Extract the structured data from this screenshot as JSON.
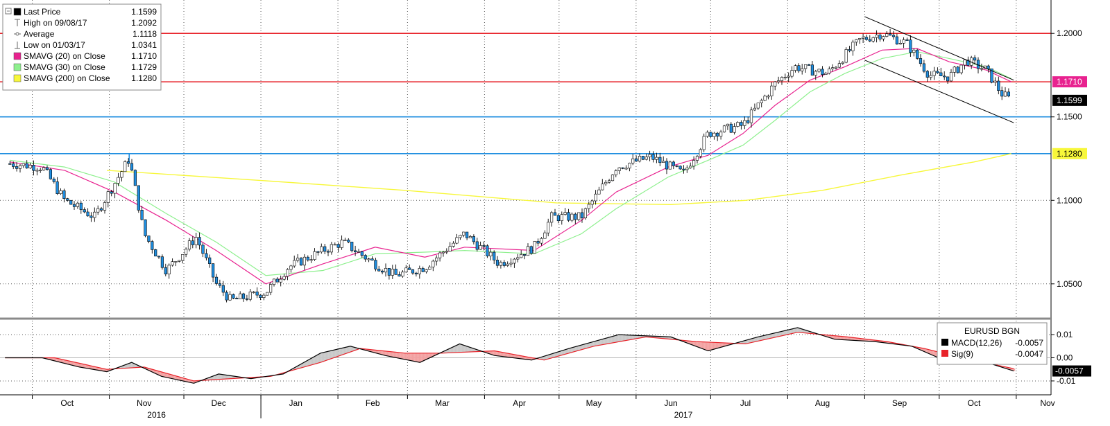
{
  "chart_data": [
    {
      "type": "candlestick",
      "ylim": [
        1.03,
        1.22
      ],
      "y_ticks": [
        "1.2000",
        "1.1500",
        "1.1000",
        "1.0500"
      ],
      "y_tick_values": [
        1.2,
        1.15,
        1.1,
        1.05
      ],
      "x_axis": {
        "months": [
          "Oct",
          "Nov",
          "Dec",
          "Jan",
          "Feb",
          "Mar",
          "Apr",
          "May",
          "Jun",
          "Jul",
          "Aug",
          "Sep",
          "Oct",
          "Nov"
        ],
        "years": [
          "2016",
          "2017"
        ]
      },
      "legend": [
        {
          "label": "Last Price",
          "value": "1.1599",
          "marker": "square",
          "color": "#000000"
        },
        {
          "label": "High on 09/08/17",
          "value": "1.2092",
          "marker": "high",
          "color": "#666666"
        },
        {
          "label": "Average",
          "value": "1.1118",
          "marker": "avg",
          "color": "#666666"
        },
        {
          "label": "Low on 01/03/17",
          "value": "1.0341",
          "marker": "low",
          "color": "#666666"
        },
        {
          "label": "SMAVG (20) on Close",
          "value": "1.1710",
          "marker": "square",
          "color": "#e8228f"
        },
        {
          "label": "SMAVG (30) on Close",
          "value": "1.1729",
          "marker": "square",
          "color": "#8ef08e"
        },
        {
          "label": "SMAVG (200) on Close",
          "value": "1.1280",
          "marker": "square",
          "color": "#f7f73a"
        }
      ],
      "horizontal_lines": [
        {
          "value": 1.2,
          "color": "#e8232a"
        },
        {
          "value": 1.171,
          "color": "#e8232a"
        },
        {
          "value": 1.15,
          "color": "#1f8ee0"
        },
        {
          "value": 1.128,
          "color": "#1f8ee0"
        }
      ],
      "badges": [
        {
          "text": "1.1710",
          "value": 1.171,
          "bg": "#e8228f",
          "fg": "#ffffff"
        },
        {
          "text": "1.1599",
          "value": 1.1599,
          "bg": "#000000",
          "fg": "#ffffff"
        },
        {
          "text": "1.1280",
          "value": 1.128,
          "bg": "#f7f73a",
          "fg": "#000000"
        }
      ],
      "colors": {
        "up": "#ffffff",
        "down": "#1f8ee0",
        "sma20": "#e8228f",
        "sma30": "#8ef08e",
        "sma200": "#f7f73a",
        "channel": "#000000"
      },
      "close_monthly": [
        {
          "x": "2016-09-22",
          "y": 1.122
        },
        {
          "x": "2016-10-05",
          "y": 1.12
        },
        {
          "x": "2016-10-14",
          "y": 1.1
        },
        {
          "x": "2016-10-26",
          "y": 1.09
        },
        {
          "x": "2016-11-03",
          "y": 1.11
        },
        {
          "x": "2016-11-09",
          "y": 1.125
        },
        {
          "x": "2016-11-15",
          "y": 1.08
        },
        {
          "x": "2016-11-24",
          "y": 1.058
        },
        {
          "x": "2016-12-06",
          "y": 1.078
        },
        {
          "x": "2016-12-14",
          "y": 1.05
        },
        {
          "x": "2016-12-20",
          "y": 1.04
        },
        {
          "x": "2017-01-03",
          "y": 1.045
        },
        {
          "x": "2017-01-12",
          "y": 1.06
        },
        {
          "x": "2017-01-26",
          "y": 1.07
        },
        {
          "x": "2017-02-03",
          "y": 1.075
        },
        {
          "x": "2017-02-16",
          "y": 1.062
        },
        {
          "x": "2017-02-24",
          "y": 1.055
        },
        {
          "x": "2017-03-08",
          "y": 1.06
        },
        {
          "x": "2017-03-24",
          "y": 1.08
        },
        {
          "x": "2017-04-07",
          "y": 1.062
        },
        {
          "x": "2017-04-21",
          "y": 1.072
        },
        {
          "x": "2017-04-28",
          "y": 1.09
        },
        {
          "x": "2017-05-10",
          "y": 1.09
        },
        {
          "x": "2017-05-24",
          "y": 1.12
        },
        {
          "x": "2017-06-07",
          "y": 1.126
        },
        {
          "x": "2017-06-20",
          "y": 1.116
        },
        {
          "x": "2017-06-30",
          "y": 1.14
        },
        {
          "x": "2017-07-14",
          "y": 1.145
        },
        {
          "x": "2017-07-27",
          "y": 1.17
        },
        {
          "x": "2017-08-04",
          "y": 1.18
        },
        {
          "x": "2017-08-17",
          "y": 1.176
        },
        {
          "x": "2017-08-30",
          "y": 1.196
        },
        {
          "x": "2017-09-08",
          "y": 1.2
        },
        {
          "x": "2017-09-18",
          "y": 1.194
        },
        {
          "x": "2017-09-27",
          "y": 1.175
        },
        {
          "x": "2017-10-05",
          "y": 1.174
        },
        {
          "x": "2017-10-12",
          "y": 1.184
        },
        {
          "x": "2017-10-20",
          "y": 1.178
        },
        {
          "x": "2017-10-26",
          "y": 1.164
        },
        {
          "x": "2017-10-30",
          "y": 1.1599
        }
      ],
      "sma20": [
        {
          "x": "2016-09-22",
          "y": 1.123
        },
        {
          "x": "2016-10-14",
          "y": 1.118
        },
        {
          "x": "2016-11-03",
          "y": 1.105
        },
        {
          "x": "2016-11-24",
          "y": 1.088
        },
        {
          "x": "2016-12-14",
          "y": 1.07
        },
        {
          "x": "2017-01-03",
          "y": 1.05
        },
        {
          "x": "2017-01-26",
          "y": 1.062
        },
        {
          "x": "2017-02-16",
          "y": 1.072
        },
        {
          "x": "2017-03-08",
          "y": 1.066
        },
        {
          "x": "2017-03-24",
          "y": 1.072
        },
        {
          "x": "2017-04-21",
          "y": 1.07
        },
        {
          "x": "2017-05-10",
          "y": 1.088
        },
        {
          "x": "2017-05-24",
          "y": 1.105
        },
        {
          "x": "2017-06-14",
          "y": 1.12
        },
        {
          "x": "2017-06-30",
          "y": 1.127
        },
        {
          "x": "2017-07-14",
          "y": 1.14
        },
        {
          "x": "2017-07-27",
          "y": 1.157
        },
        {
          "x": "2017-08-10",
          "y": 1.172
        },
        {
          "x": "2017-08-24",
          "y": 1.18
        },
        {
          "x": "2017-09-08",
          "y": 1.19
        },
        {
          "x": "2017-09-22",
          "y": 1.191
        },
        {
          "x": "2017-10-05",
          "y": 1.183
        },
        {
          "x": "2017-10-20",
          "y": 1.178
        },
        {
          "x": "2017-10-30",
          "y": 1.171
        }
      ],
      "sma30": [
        {
          "x": "2016-09-22",
          "y": 1.124
        },
        {
          "x": "2016-10-14",
          "y": 1.12
        },
        {
          "x": "2016-11-03",
          "y": 1.111
        },
        {
          "x": "2016-11-24",
          "y": 1.092
        },
        {
          "x": "2016-12-14",
          "y": 1.075
        },
        {
          "x": "2017-01-03",
          "y": 1.055
        },
        {
          "x": "2017-01-26",
          "y": 1.058
        },
        {
          "x": "2017-02-16",
          "y": 1.068
        },
        {
          "x": "2017-03-08",
          "y": 1.069
        },
        {
          "x": "2017-03-24",
          "y": 1.07
        },
        {
          "x": "2017-04-21",
          "y": 1.068
        },
        {
          "x": "2017-05-10",
          "y": 1.08
        },
        {
          "x": "2017-05-24",
          "y": 1.095
        },
        {
          "x": "2017-06-14",
          "y": 1.114
        },
        {
          "x": "2017-06-30",
          "y": 1.124
        },
        {
          "x": "2017-07-14",
          "y": 1.133
        },
        {
          "x": "2017-07-27",
          "y": 1.148
        },
        {
          "x": "2017-08-10",
          "y": 1.165
        },
        {
          "x": "2017-08-24",
          "y": 1.176
        },
        {
          "x": "2017-09-08",
          "y": 1.185
        },
        {
          "x": "2017-09-22",
          "y": 1.189
        },
        {
          "x": "2017-10-05",
          "y": 1.185
        },
        {
          "x": "2017-10-20",
          "y": 1.18
        },
        {
          "x": "2017-10-30",
          "y": 1.1729
        }
      ],
      "sma200": [
        {
          "x": "2016-10-31",
          "y": 1.118
        },
        {
          "x": "2016-12-31",
          "y": 1.112
        },
        {
          "x": "2017-02-28",
          "y": 1.106
        },
        {
          "x": "2017-04-30",
          "y": 1.0985
        },
        {
          "x": "2017-06-15",
          "y": 1.0975
        },
        {
          "x": "2017-07-15",
          "y": 1.1
        },
        {
          "x": "2017-08-15",
          "y": 1.106
        },
        {
          "x": "2017-09-15",
          "y": 1.115
        },
        {
          "x": "2017-10-15",
          "y": 1.123
        },
        {
          "x": "2017-10-30",
          "y": 1.128
        }
      ],
      "channel_upper": [
        {
          "x": "2017-09-01",
          "y": 1.21
        },
        {
          "x": "2017-10-31",
          "y": 1.172
        }
      ],
      "channel_lower": [
        {
          "x": "2017-09-01",
          "y": 1.184
        },
        {
          "x": "2017-10-31",
          "y": 1.1465
        }
      ]
    },
    {
      "type": "line",
      "title": "EURUSD BGN",
      "ylim": [
        -0.016,
        0.016
      ],
      "y_ticks": [
        "0.01",
        "0.00",
        "-0.01"
      ],
      "y_tick_values": [
        0.01,
        0.0,
        -0.01
      ],
      "series": [
        {
          "name": "MACD(12,26)",
          "value": "-0.0057",
          "color": "#000000",
          "points": [
            {
              "x": "2016-09-20",
              "y": 0.0
            },
            {
              "x": "2016-10-05",
              "y": 0.0
            },
            {
              "x": "2016-10-20",
              "y": -0.004
            },
            {
              "x": "2016-10-31",
              "y": -0.006
            },
            {
              "x": "2016-11-10",
              "y": -0.002
            },
            {
              "x": "2016-11-22",
              "y": -0.008
            },
            {
              "x": "2016-12-05",
              "y": -0.011
            },
            {
              "x": "2016-12-15",
              "y": -0.007
            },
            {
              "x": "2016-12-28",
              "y": -0.009
            },
            {
              "x": "2017-01-10",
              "y": -0.007
            },
            {
              "x": "2017-01-25",
              "y": 0.002
            },
            {
              "x": "2017-02-06",
              "y": 0.005
            },
            {
              "x": "2017-02-20",
              "y": 0.001
            },
            {
              "x": "2017-03-06",
              "y": -0.002
            },
            {
              "x": "2017-03-22",
              "y": 0.006
            },
            {
              "x": "2017-04-05",
              "y": 0.001
            },
            {
              "x": "2017-04-20",
              "y": -0.001
            },
            {
              "x": "2017-05-05",
              "y": 0.004
            },
            {
              "x": "2017-05-25",
              "y": 0.01
            },
            {
              "x": "2017-06-15",
              "y": 0.009
            },
            {
              "x": "2017-06-30",
              "y": 0.003
            },
            {
              "x": "2017-07-20",
              "y": 0.009
            },
            {
              "x": "2017-08-05",
              "y": 0.013
            },
            {
              "x": "2017-08-20",
              "y": 0.008
            },
            {
              "x": "2017-09-05",
              "y": 0.007
            },
            {
              "x": "2017-09-20",
              "y": 0.005
            },
            {
              "x": "2017-10-05",
              "y": -0.002
            },
            {
              "x": "2017-10-20",
              "y": -0.002
            },
            {
              "x": "2017-10-31",
              "y": -0.0057
            }
          ]
        },
        {
          "name": "Sig(9)",
          "value": "-0.0047",
          "color": "#e8232a",
          "points": [
            {
              "x": "2016-09-20",
              "y": 0.0
            },
            {
              "x": "2016-10-10",
              "y": 0.0
            },
            {
              "x": "2016-10-31",
              "y": -0.005
            },
            {
              "x": "2016-11-15",
              "y": -0.004
            },
            {
              "x": "2016-12-05",
              "y": -0.01
            },
            {
              "x": "2016-12-20",
              "y": -0.009
            },
            {
              "x": "2017-01-05",
              "y": -0.008
            },
            {
              "x": "2017-01-25",
              "y": -0.002
            },
            {
              "x": "2017-02-10",
              "y": 0.004
            },
            {
              "x": "2017-02-28",
              "y": 0.002
            },
            {
              "x": "2017-03-15",
              "y": 0.002
            },
            {
              "x": "2017-04-05",
              "y": 0.003
            },
            {
              "x": "2017-04-25",
              "y": -0.001
            },
            {
              "x": "2017-05-15",
              "y": 0.005
            },
            {
              "x": "2017-06-05",
              "y": 0.009
            },
            {
              "x": "2017-06-25",
              "y": 0.007
            },
            {
              "x": "2017-07-15",
              "y": 0.006
            },
            {
              "x": "2017-08-05",
              "y": 0.011
            },
            {
              "x": "2017-08-25",
              "y": 0.009
            },
            {
              "x": "2017-09-10",
              "y": 0.007
            },
            {
              "x": "2017-09-25",
              "y": 0.004
            },
            {
              "x": "2017-10-10",
              "y": 0.0
            },
            {
              "x": "2017-10-31",
              "y": -0.0047
            }
          ]
        }
      ],
      "badges": [
        {
          "text": "-0.0057",
          "value": -0.0057,
          "bg": "#000000",
          "fg": "#ffffff"
        }
      ]
    }
  ]
}
